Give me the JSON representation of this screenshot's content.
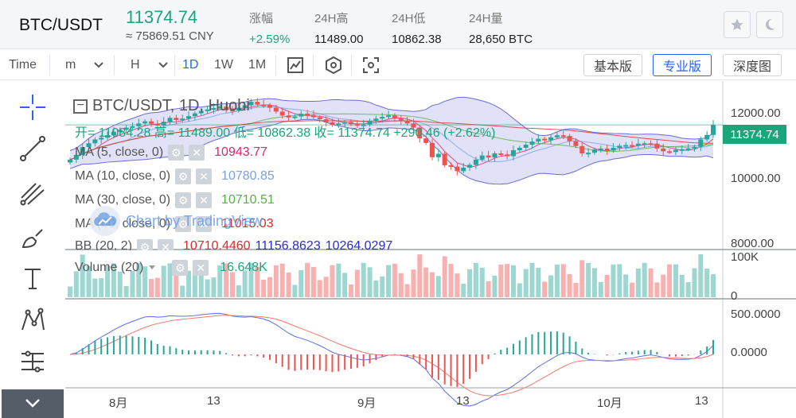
{
  "header": {
    "pair": "BTC/USDT",
    "last_price": "11374.74",
    "cny_price": "≈ 75869.51 CNY",
    "stats": [
      {
        "label": "涨幅",
        "value": "+2.59%"
      },
      {
        "label": "24H高",
        "value": "11489.00"
      },
      {
        "label": "24H低",
        "value": "10862.38"
      },
      {
        "label": "24H量",
        "value": "28,650 BTC"
      }
    ],
    "icons": [
      "star-icon",
      "moon-icon"
    ]
  },
  "toolbar": {
    "time_label": "Time",
    "minute_select": "m",
    "hour_select": "H",
    "intervals": [
      "1D",
      "1W",
      "1M"
    ],
    "active_interval": "1D",
    "icon_buttons": [
      "chart-type-icon",
      "settings-hex-icon",
      "screenshot-icon"
    ],
    "view_buttons": [
      "基本版",
      "专业版",
      "深度图"
    ],
    "active_view": "专业版"
  },
  "legend": {
    "title": "BTC/USDT, 1D, Huobi",
    "ohlc": "开= 11084.28  高= 11489.00  低= 10862.38  收= 11374.74  +290.46 (+2.62%)",
    "indicators": [
      {
        "label": "MA (5, close, 0)",
        "value": "10943.77",
        "color": "#e0246d"
      },
      {
        "label": "MA (10, close, 0)",
        "value": "10780.85",
        "color": "#7aa2e3"
      },
      {
        "label": "MA (30, close, 0)",
        "value": "10710.51",
        "color": "#58b043"
      },
      {
        "label": "MA (60, close, 0)",
        "value": "11015.03",
        "color": "#d92b2b"
      }
    ],
    "bb": {
      "label": "BB (20, 2)",
      "values": [
        "10710.4460",
        "11156.8623",
        "10264.0297"
      ],
      "colors": [
        "#d92b2b",
        "#2a2ad8",
        "#2a2ad8"
      ]
    },
    "volume": {
      "label": "Volume (20)",
      "value": "16.648K"
    },
    "watermark": "Chart by TradingView"
  },
  "price_scale": {
    "labels": [
      "12000.00",
      "10000.00",
      "8000.00"
    ],
    "current": "11374.74",
    "volume_label": "100K",
    "volume_zero": "0",
    "macd_labels": [
      "500.0000",
      "0.0000"
    ]
  },
  "time_axis": [
    "8月",
    "13",
    "9月",
    "13",
    "10月",
    "13"
  ],
  "tools": [
    "crosshair-icon",
    "trend-line-icon",
    "pitchfork-icon",
    "brush-icon",
    "text-icon",
    "pattern-icon",
    "measure-icon"
  ],
  "colors": {
    "up": "#26a69a",
    "down": "#ef5350",
    "bb_fill": "rgba(120,120,220,0.22)",
    "bb_line": "#6b6bd6",
    "accent": "#2962ff"
  },
  "chart_data": {
    "type": "candlestick",
    "y_range": [
      7800,
      12500
    ],
    "closes": [
      10380,
      10520,
      10740,
      10850,
      10960,
      11010,
      11080,
      11180,
      11240,
      11300,
      11340,
      11420,
      11480,
      11410,
      11360,
      11470,
      11580,
      11520,
      11560,
      11630,
      11710,
      11780,
      11820,
      11860,
      11900,
      11810,
      11790,
      11870,
      11940,
      12040,
      11960,
      11950,
      11870,
      11760,
      11650,
      11590,
      11620,
      11700,
      11660,
      11600,
      11540,
      11450,
      11380,
      11420,
      11460,
      11400,
      11380,
      11390,
      11500,
      11560,
      11610,
      11650,
      11560,
      11500,
      11420,
      11300,
      10990,
      10860,
      10450,
      10550,
      10220,
      10180,
      10050,
      10150,
      10230,
      10380,
      10500,
      10440,
      10560,
      10530,
      10480,
      10650,
      10720,
      10810,
      10900,
      10980,
      10940,
      11020,
      11080,
      11060,
      10910,
      10770,
      10560,
      10580,
      10670,
      10700,
      10640,
      10720,
      10780,
      10800,
      10780,
      10840,
      10850,
      10840,
      10700,
      10620,
      10600,
      10660,
      10680,
      10700,
      10750,
      10960,
      11090,
      11380
    ],
    "volume_max_k": 100,
    "macd_range": [
      -500,
      800
    ]
  }
}
